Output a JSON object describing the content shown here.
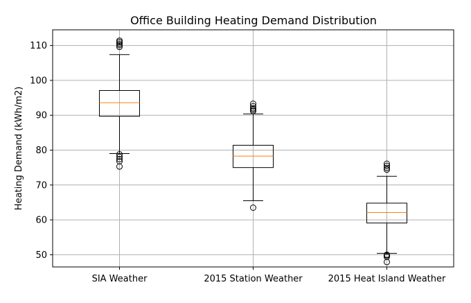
{
  "chart_data": {
    "type": "box",
    "title": "Office Building Heating Demand Distribution",
    "xlabel": "",
    "ylabel": "Heating Demand (kWh/m2)",
    "ylim": [
      46.5,
      114.5
    ],
    "yticks": [
      50,
      60,
      70,
      80,
      90,
      100,
      110
    ],
    "grid": true,
    "categories": [
      "SIA Weather",
      "2015 Station Weather",
      "2015 Heat Island Weather"
    ],
    "boxes": [
      {
        "label": "SIA Weather",
        "whisker_low": 79.0,
        "q1": 89.7,
        "median": 93.6,
        "q3": 97.1,
        "whisker_high": 107.4,
        "outliers": [
          75.3,
          76.8,
          77.4,
          78.1,
          78.8,
          109.6,
          110.1,
          110.5,
          111.0,
          111.4
        ]
      },
      {
        "label": "2015 Station Weather",
        "whisker_low": 65.5,
        "q1": 75.0,
        "median": 78.3,
        "q3": 81.4,
        "whisker_high": 90.4,
        "outliers": [
          63.5,
          91.2,
          91.6,
          92.0,
          92.6,
          93.3
        ]
      },
      {
        "label": "2015 Heat Island Weather",
        "whisker_low": 50.4,
        "q1": 59.1,
        "median": 62.1,
        "q3": 64.8,
        "whisker_high": 72.5,
        "outliers": [
          47.9,
          49.4,
          49.8,
          50.0,
          74.4,
          74.9,
          75.5,
          76.1
        ]
      }
    ],
    "colors": {
      "box": "#000000",
      "median": "#ff7f0e",
      "grid": "#b0b0b0"
    }
  }
}
